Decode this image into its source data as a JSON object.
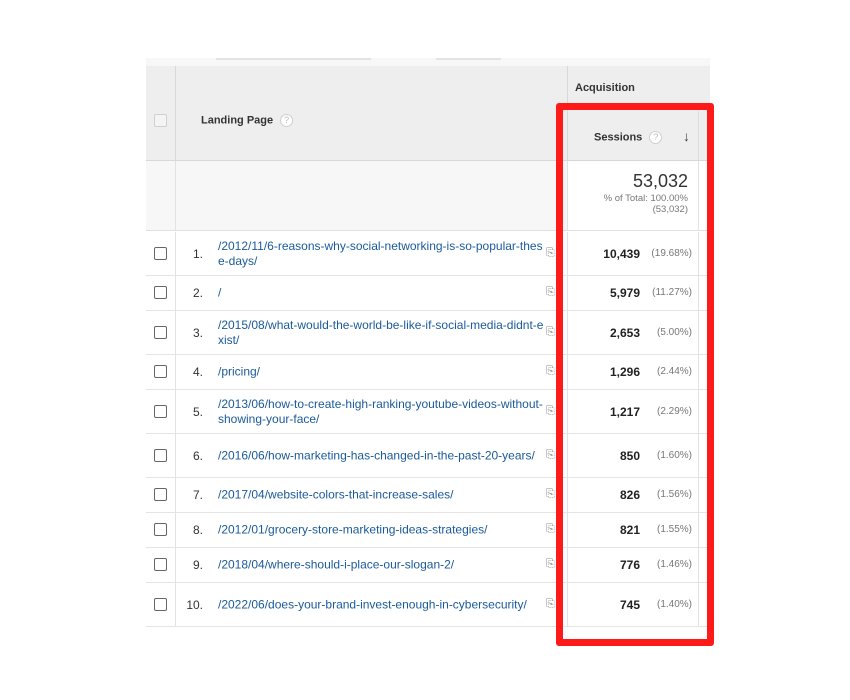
{
  "table": {
    "dimension_header": "Landing Page",
    "group_header": "Acquisition",
    "metric_header": "Sessions",
    "help_glyph": "?",
    "sort_glyph": "↓",
    "totals": {
      "value": "53,032",
      "pct_text": "% of Total: 100.00%",
      "abs_text": "(53,032)"
    },
    "rows": [
      {
        "num": "1.",
        "page": "/2012/11/6-reasons-why-social-networking-is-so-popular-these-days/",
        "sessions": "10,439",
        "pct": "(19.68%)"
      },
      {
        "num": "2.",
        "page": "/",
        "sessions": "5,979",
        "pct": "(11.27%)"
      },
      {
        "num": "3.",
        "page": "/2015/08/what-would-the-world-be-like-if-social-media-didnt-exist/",
        "sessions": "2,653",
        "pct": "(5.00%)"
      },
      {
        "num": "4.",
        "page": "/pricing/",
        "sessions": "1,296",
        "pct": "(2.44%)"
      },
      {
        "num": "5.",
        "page": "/2013/06/how-to-create-high-ranking-youtube-videos-without-showing-your-face/",
        "sessions": "1,217",
        "pct": "(2.29%)"
      },
      {
        "num": "6.",
        "page": "/2016/06/how-marketing-has-changed-in-the-past-20-years/",
        "sessions": "850",
        "pct": "(1.60%)"
      },
      {
        "num": "7.",
        "page": "/2017/04/website-colors-that-increase-sales/",
        "sessions": "826",
        "pct": "(1.56%)"
      },
      {
        "num": "8.",
        "page": "/2012/01/grocery-store-marketing-ideas-strategies/",
        "sessions": "821",
        "pct": "(1.55%)"
      },
      {
        "num": "9.",
        "page": "/2018/04/where-should-i-place-our-slogan-2/",
        "sessions": "776",
        "pct": "(1.46%)"
      },
      {
        "num": "10.",
        "page": "/2022/06/does-your-brand-invest-enough-in-cybersecurity/",
        "sessions": "745",
        "pct": "(1.40%)"
      }
    ]
  },
  "colors": {
    "link": "#1a5a9a",
    "highlight": "#ff1a1a",
    "header_bg": "#eeeeee"
  }
}
